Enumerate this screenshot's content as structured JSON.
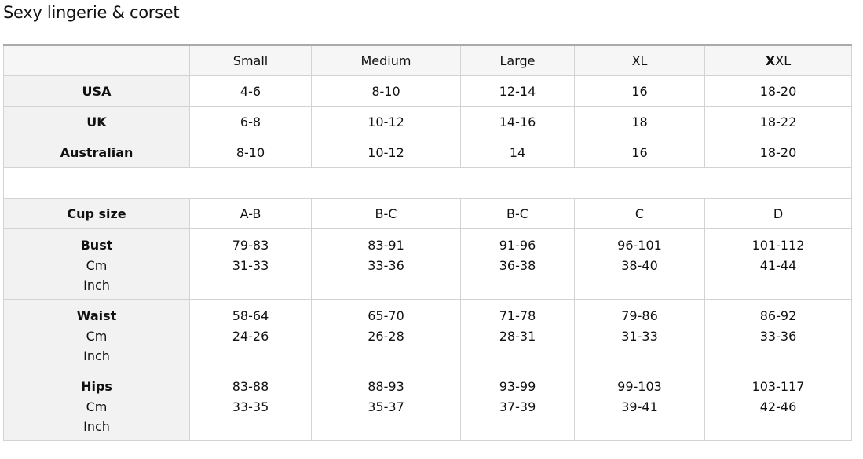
{
  "title": "Sexy lingerie & corset",
  "columns": [
    "Small",
    "Medium",
    "Large",
    "XL"
  ],
  "last_column": {
    "bold": "X",
    "rest": "XL"
  },
  "simple_rows": [
    {
      "label": "USA",
      "values": [
        "4-6",
        "8-10",
        "12-14",
        "16",
        "18-20"
      ]
    },
    {
      "label": "UK",
      "values": [
        "6-8",
        "10-12",
        "14-16",
        "18",
        "18-22"
      ]
    },
    {
      "label": "Australian",
      "values": [
        "8-10",
        "10-12",
        "14",
        "16",
        "18-20"
      ]
    }
  ],
  "cup_row": {
    "label": "Cup size",
    "values": [
      "A-B",
      "B-C",
      "B-C",
      "C",
      "D"
    ]
  },
  "measure_rows": [
    {
      "label": "Bust",
      "unit1": "Cm",
      "unit2": "Inch",
      "cm": [
        "79-83",
        "83-91",
        "91-96",
        "96-101",
        "101-112"
      ],
      "inch": [
        "31-33",
        "33-36",
        "36-38",
        "38-40",
        "41-44"
      ]
    },
    {
      "label": "Waist",
      "unit1": "Cm",
      "unit2": "Inch",
      "cm": [
        "58-64",
        "65-70",
        "71-78",
        "79-86",
        "86-92"
      ],
      "inch": [
        "24-26",
        "26-28",
        "28-31",
        "31-33",
        "33-36"
      ]
    },
    {
      "label": "Hips",
      "unit1": "Cm",
      "unit2": "Inch",
      "cm": [
        "83-88",
        "88-93",
        "93-99",
        "99-103",
        "103-117"
      ],
      "inch": [
        "33-35",
        "35-37",
        "37-39",
        "39-41",
        "42-46"
      ]
    }
  ]
}
